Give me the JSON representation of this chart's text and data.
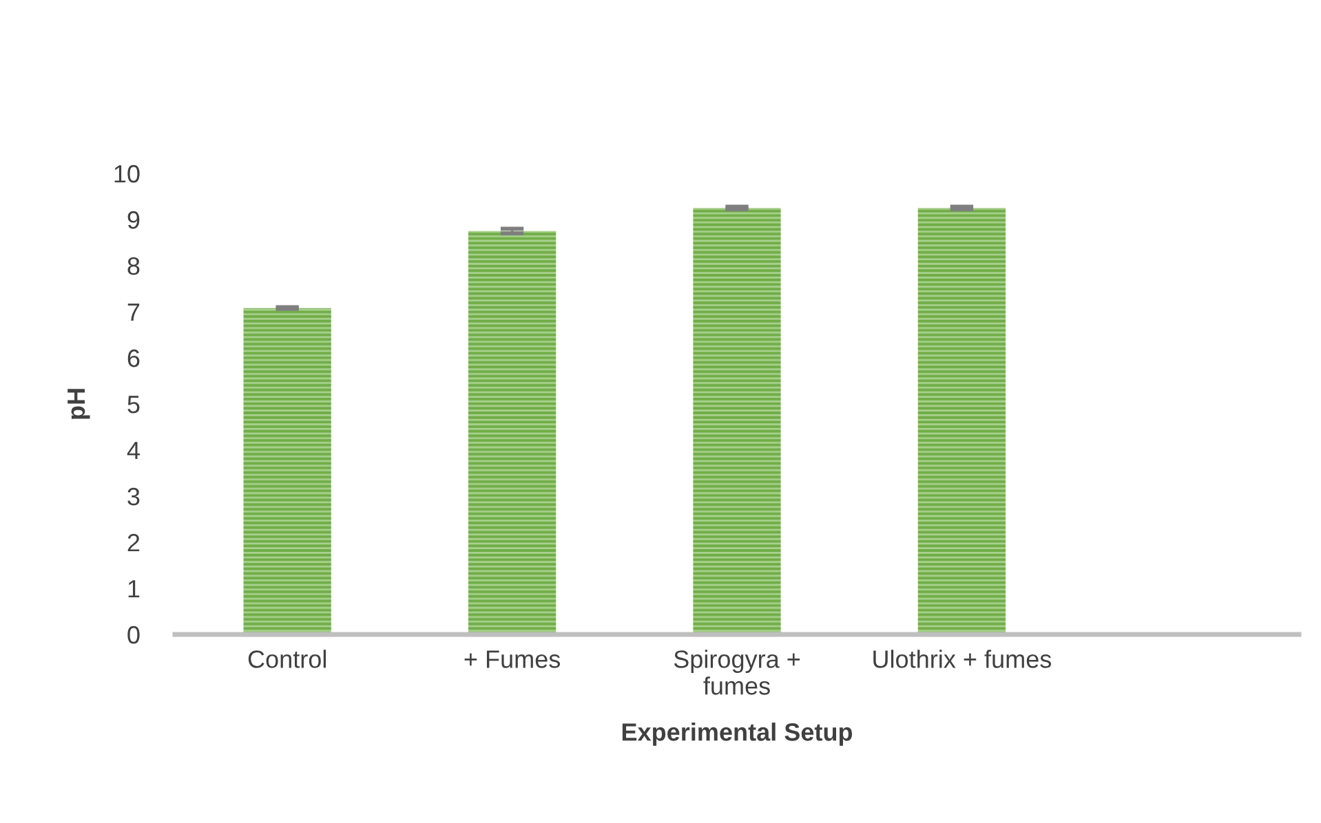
{
  "chart_data": {
    "type": "bar",
    "xlabel": "Experimental Setup",
    "ylabel": "pH",
    "categories": [
      "Control",
      "+ Fumes",
      "Spirogyra +\nfumes",
      "Ulothrix + fumes",
      null
    ],
    "values": [
      7.08,
      8.75,
      9.25,
      9.25,
      null
    ],
    "errors": [
      0.02,
      0.05,
      0.03,
      0.03,
      null
    ],
    "color": "#70ad47",
    "ylim": [
      0,
      10
    ],
    "yticks": [
      0,
      1,
      2,
      3,
      4,
      5,
      6,
      7,
      8,
      9,
      10
    ],
    "grid": false,
    "legend": false
  }
}
